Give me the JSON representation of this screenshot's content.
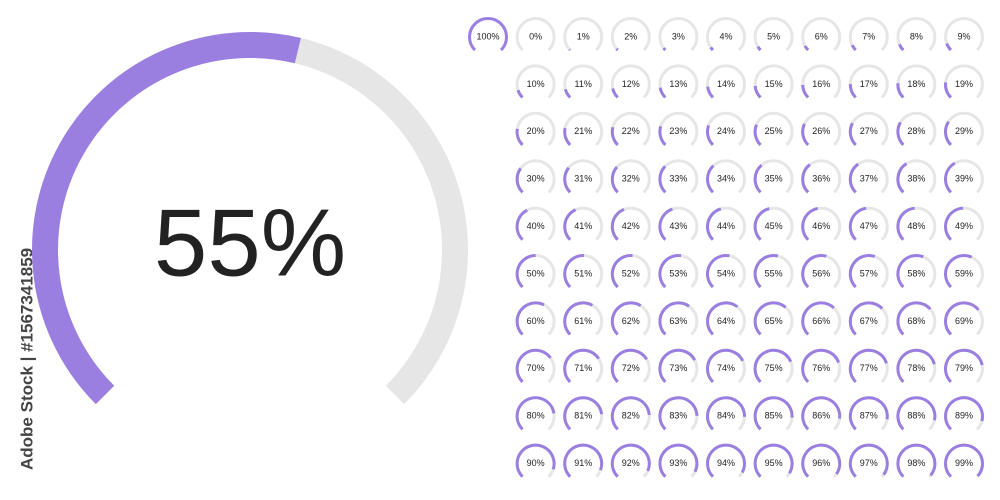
{
  "chart_data": {
    "type": "gauge",
    "color": "#9b7fe0",
    "track_color": "#e6e6e6",
    "main": {
      "value": 55,
      "label": "55%"
    },
    "gauges": [
      {
        "value": 100,
        "label": "100%"
      },
      {
        "value": 0,
        "label": "0%"
      },
      {
        "value": 1,
        "label": "1%"
      },
      {
        "value": 2,
        "label": "2%"
      },
      {
        "value": 3,
        "label": "3%"
      },
      {
        "value": 4,
        "label": "4%"
      },
      {
        "value": 5,
        "label": "5%"
      },
      {
        "value": 6,
        "label": "6%"
      },
      {
        "value": 7,
        "label": "7%"
      },
      {
        "value": 8,
        "label": "8%"
      },
      {
        "value": 9,
        "label": "9%"
      },
      {
        "value": 10,
        "label": "10%"
      },
      {
        "value": 11,
        "label": "11%"
      },
      {
        "value": 12,
        "label": "12%"
      },
      {
        "value": 13,
        "label": "13%"
      },
      {
        "value": 14,
        "label": "14%"
      },
      {
        "value": 15,
        "label": "15%"
      },
      {
        "value": 16,
        "label": "16%"
      },
      {
        "value": 17,
        "label": "17%"
      },
      {
        "value": 18,
        "label": "18%"
      },
      {
        "value": 19,
        "label": "19%"
      },
      {
        "value": 20,
        "label": "20%"
      },
      {
        "value": 21,
        "label": "21%"
      },
      {
        "value": 22,
        "label": "22%"
      },
      {
        "value": 23,
        "label": "23%"
      },
      {
        "value": 24,
        "label": "24%"
      },
      {
        "value": 25,
        "label": "25%"
      },
      {
        "value": 26,
        "label": "26%"
      },
      {
        "value": 27,
        "label": "27%"
      },
      {
        "value": 28,
        "label": "28%"
      },
      {
        "value": 29,
        "label": "29%"
      },
      {
        "value": 30,
        "label": "30%"
      },
      {
        "value": 31,
        "label": "31%"
      },
      {
        "value": 32,
        "label": "32%"
      },
      {
        "value": 33,
        "label": "33%"
      },
      {
        "value": 34,
        "label": "34%"
      },
      {
        "value": 35,
        "label": "35%"
      },
      {
        "value": 36,
        "label": "36%"
      },
      {
        "value": 37,
        "label": "37%"
      },
      {
        "value": 38,
        "label": "38%"
      },
      {
        "value": 39,
        "label": "39%"
      },
      {
        "value": 40,
        "label": "40%"
      },
      {
        "value": 41,
        "label": "41%"
      },
      {
        "value": 42,
        "label": "42%"
      },
      {
        "value": 43,
        "label": "43%"
      },
      {
        "value": 44,
        "label": "44%"
      },
      {
        "value": 45,
        "label": "45%"
      },
      {
        "value": 46,
        "label": "46%"
      },
      {
        "value": 47,
        "label": "47%"
      },
      {
        "value": 48,
        "label": "48%"
      },
      {
        "value": 49,
        "label": "49%"
      },
      {
        "value": 50,
        "label": "50%"
      },
      {
        "value": 51,
        "label": "51%"
      },
      {
        "value": 52,
        "label": "52%"
      },
      {
        "value": 53,
        "label": "53%"
      },
      {
        "value": 54,
        "label": "54%"
      },
      {
        "value": 55,
        "label": "55%"
      },
      {
        "value": 56,
        "label": "56%"
      },
      {
        "value": 57,
        "label": "57%"
      },
      {
        "value": 58,
        "label": "58%"
      },
      {
        "value": 59,
        "label": "59%"
      },
      {
        "value": 60,
        "label": "60%"
      },
      {
        "value": 61,
        "label": "61%"
      },
      {
        "value": 62,
        "label": "62%"
      },
      {
        "value": 63,
        "label": "63%"
      },
      {
        "value": 64,
        "label": "64%"
      },
      {
        "value": 65,
        "label": "65%"
      },
      {
        "value": 66,
        "label": "66%"
      },
      {
        "value": 67,
        "label": "67%"
      },
      {
        "value": 68,
        "label": "68%"
      },
      {
        "value": 69,
        "label": "69%"
      },
      {
        "value": 70,
        "label": "70%"
      },
      {
        "value": 71,
        "label": "71%"
      },
      {
        "value": 72,
        "label": "72%"
      },
      {
        "value": 73,
        "label": "73%"
      },
      {
        "value": 74,
        "label": "74%"
      },
      {
        "value": 75,
        "label": "75%"
      },
      {
        "value": 76,
        "label": "76%"
      },
      {
        "value": 77,
        "label": "77%"
      },
      {
        "value": 78,
        "label": "78%"
      },
      {
        "value": 79,
        "label": "79%"
      },
      {
        "value": 80,
        "label": "80%"
      },
      {
        "value": 81,
        "label": "81%"
      },
      {
        "value": 82,
        "label": "82%"
      },
      {
        "value": 83,
        "label": "83%"
      },
      {
        "value": 84,
        "label": "84%"
      },
      {
        "value": 85,
        "label": "85%"
      },
      {
        "value": 86,
        "label": "86%"
      },
      {
        "value": 87,
        "label": "87%"
      },
      {
        "value": 88,
        "label": "88%"
      },
      {
        "value": 89,
        "label": "89%"
      },
      {
        "value": 90,
        "label": "90%"
      },
      {
        "value": 91,
        "label": "91%"
      },
      {
        "value": 92,
        "label": "92%"
      },
      {
        "value": 93,
        "label": "93%"
      },
      {
        "value": 94,
        "label": "94%"
      },
      {
        "value": 95,
        "label": "95%"
      },
      {
        "value": 96,
        "label": "96%"
      },
      {
        "value": 97,
        "label": "97%"
      },
      {
        "value": 98,
        "label": "98%"
      },
      {
        "value": 99,
        "label": "99%"
      }
    ],
    "watermark": "Adobe Stock | #1567341859"
  }
}
